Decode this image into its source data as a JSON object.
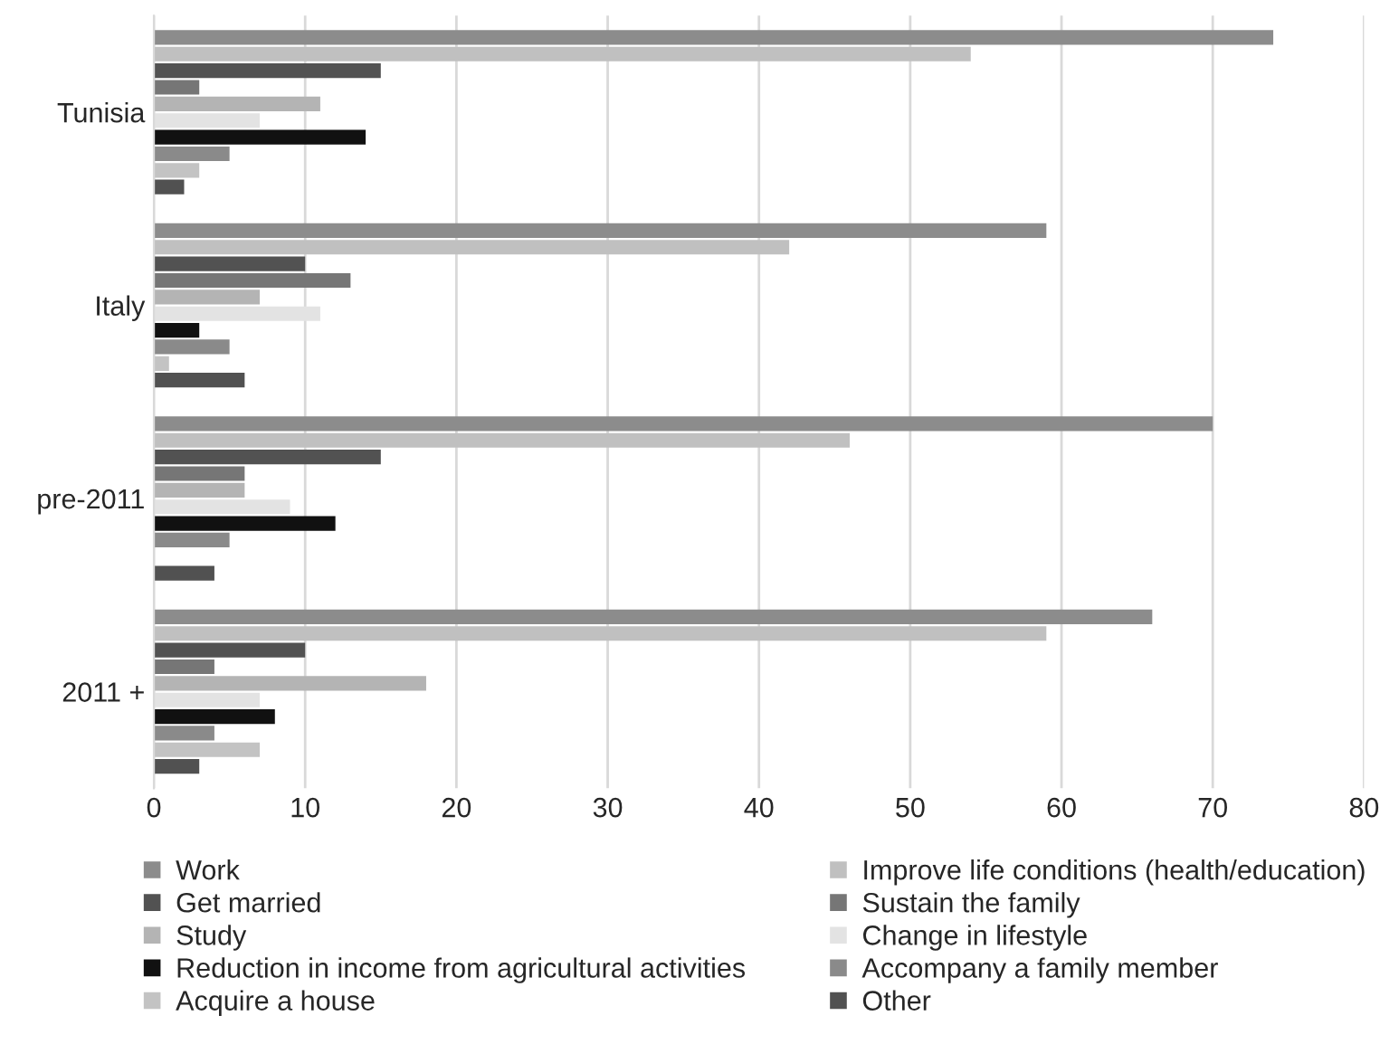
{
  "chart_data": {
    "type": "bar",
    "orientation": "horizontal",
    "categories": [
      "Tunisia",
      "Italy",
      "pre-2011",
      "2011 +"
    ],
    "series": [
      {
        "name": "Work",
        "color": "#8c8c8c",
        "values": [
          74,
          59,
          70,
          66
        ]
      },
      {
        "name": "Improve life conditions (health/education)",
        "color": "#c0c0c0",
        "values": [
          54,
          42,
          46,
          59
        ]
      },
      {
        "name": "Get married",
        "color": "#525252",
        "values": [
          15,
          10,
          15,
          10
        ]
      },
      {
        "name": "Sustain the family",
        "color": "#767676",
        "values": [
          3,
          13,
          6,
          4
        ]
      },
      {
        "name": "Study",
        "color": "#b4b4b4",
        "values": [
          11,
          7,
          6,
          18
        ]
      },
      {
        "name": "Change in lifestyle",
        "color": "#e3e3e3",
        "values": [
          7,
          11,
          9,
          7
        ]
      },
      {
        "name": "Reduction in income from agricultural activities",
        "color": "#111111",
        "values": [
          14,
          3,
          12,
          8
        ]
      },
      {
        "name": "Accompany a family member",
        "color": "#8a8a8a",
        "values": [
          5,
          5,
          5,
          4
        ]
      },
      {
        "name": "Acquire a house",
        "color": "#c3c3c3",
        "values": [
          3,
          1,
          0,
          7
        ]
      },
      {
        "name": "Other",
        "color": "#515151",
        "values": [
          2,
          6,
          4,
          3
        ]
      }
    ],
    "xlim": [
      0,
      80
    ],
    "xticks": [
      0,
      10,
      20,
      30,
      40,
      50,
      60,
      70,
      80
    ],
    "grid": "x",
    "legend": "bottom"
  }
}
